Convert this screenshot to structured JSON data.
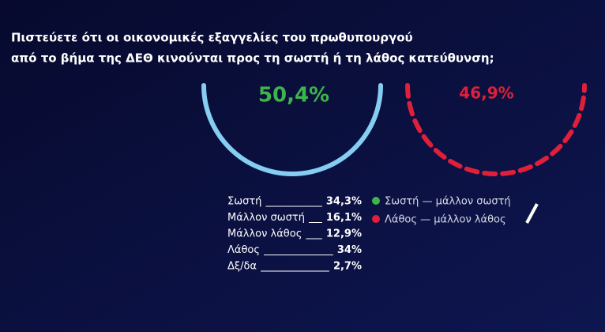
{
  "title": {
    "line1": "Πιστεύετε ότι οι οικονομικές εξαγγελίες του πρωθυπουργού",
    "line2": "από το βήμα της ΔΕΘ κινούνται προς τη σωστή ή τη λάθος κατεύθυνση;"
  },
  "totals": {
    "right": "50,4%",
    "wrong": "46,9%"
  },
  "breakdown": [
    {
      "label": "Σωστή",
      "value": "34,3%"
    },
    {
      "label": "Μάλλον σωστή",
      "value": "16,1%"
    },
    {
      "label": "Μάλλον λάθος",
      "value": "12,9%"
    },
    {
      "label": "Λάθος",
      "value": "34%"
    },
    {
      "label": "Δξ/δα",
      "value": "2,7%"
    }
  ],
  "legend": {
    "right": "Σωστή — μάλλον σωστή",
    "wrong": "Λάθος — μάλλον λάθος"
  }
}
